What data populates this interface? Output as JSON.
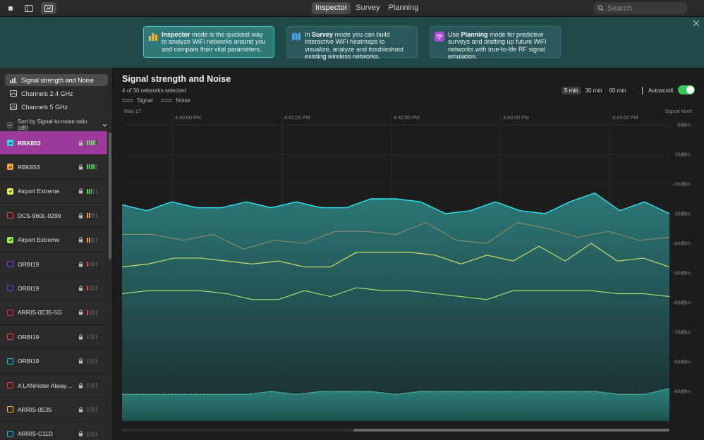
{
  "toolbar": {
    "modes": [
      "Inspector",
      "Survey",
      "Planning"
    ],
    "active_mode": "Inspector",
    "search_placeholder": "Search"
  },
  "banner": {
    "cards": [
      {
        "bold": "Inspector",
        "text": " mode is the quickest way to analyze WiFi networks around you and compare their vital parameters.",
        "prefix": "",
        "icon": "bar-chart-icon"
      },
      {
        "bold": "Survey",
        "text": " mode you can build interactive WiFi heatmaps to visualize, analyze and troubleshoot existing wireless networks.",
        "prefix": "In ",
        "icon": "map-icon"
      },
      {
        "bold": "Planning",
        "text": " mode for predictive surveys and drafting up future WiFi networks with true-to-life RF signal emulation.",
        "prefix": "Use ",
        "icon": "wifi-icon"
      }
    ]
  },
  "sidebar": {
    "nav": [
      {
        "label": "Signal strength and Noise",
        "icon": "signal-icon"
      },
      {
        "label": "Channels 2.4 GHz",
        "icon": "channels-icon"
      },
      {
        "label": "Channels 5 GHz",
        "icon": "channels-icon"
      }
    ],
    "sort_label": "Sort by Signal-to-noise ratio (dB)",
    "networks": [
      {
        "name": "RBK853",
        "color": "#3fd3e0",
        "checked": true,
        "selected": true,
        "bars": [
          "#6fdc6f",
          "#6fdc6f",
          "#6fdc6f",
          "#6fdc6f",
          "#6fdc6f",
          "#4a4a4a"
        ]
      },
      {
        "name": "RBK853",
        "color": "#f0a43a",
        "checked": true,
        "selected": false,
        "bars": [
          "#4fd34f",
          "#4fd34f",
          "#4fd34f",
          "#4fd34f",
          "#4fd34f",
          "#4a4a4a"
        ]
      },
      {
        "name": "Airport Extreme",
        "color": "#e6ef5a",
        "checked": true,
        "selected": false,
        "bars": [
          "#4fd34f",
          "#4fd34f",
          "#4fd34f",
          "#4a4a4a",
          "#4a4a4a",
          "#4a4a4a"
        ]
      },
      {
        "name": "DCS-960L-0299",
        "color": "#d94b55",
        "checked": false,
        "selected": false,
        "bars": [
          "#f09a3a",
          "#f09a3a",
          "#4a4a4a",
          "#4a4a4a",
          "#4a4a4a",
          "#4a4a4a"
        ]
      },
      {
        "name": "Airport Extreme",
        "color": "#9be85b",
        "checked": true,
        "selected": false,
        "bars": [
          "#f09a3a",
          "#f09a3a",
          "#4a4a4a",
          "#4a4a4a",
          "#4a4a4a",
          "#4a4a4a"
        ]
      },
      {
        "name": "ORBI19",
        "color": "#7c4dc9",
        "checked": false,
        "selected": false,
        "bars": [
          "#e0443c",
          "#4a4a4a",
          "#4a4a4a",
          "#4a4a4a",
          "#4a4a4a",
          "#4a4a4a"
        ]
      },
      {
        "name": "ORBI19",
        "color": "#6a3fc0",
        "checked": false,
        "selected": false,
        "bars": [
          "#e0443c",
          "#4a4a4a",
          "#4a4a4a",
          "#4a4a4a",
          "#4a4a4a",
          "#4a4a4a"
        ]
      },
      {
        "name": "ARRIS-0E35-5G",
        "color": "#c8375f",
        "checked": false,
        "selected": false,
        "bars": [
          "#e0443c",
          "#4a4a4a",
          "#4a4a4a",
          "#4a4a4a",
          "#4a4a4a",
          "#4a4a4a"
        ]
      },
      {
        "name": "ORBI19",
        "color": "#d94b55",
        "checked": false,
        "selected": false,
        "bars": [
          "#4a4a4a",
          "#4a4a4a",
          "#4a4a4a",
          "#4a4a4a",
          "#4a4a4a",
          "#4a4a4a"
        ]
      },
      {
        "name": "ORBI19",
        "color": "#3ab8d0",
        "checked": false,
        "selected": false,
        "bars": [
          "#4a4a4a",
          "#4a4a4a",
          "#4a4a4a",
          "#4a4a4a",
          "#4a4a4a",
          "#4a4a4a"
        ]
      },
      {
        "name": "A LANnister Always...",
        "color": "#d94b55",
        "checked": false,
        "selected": false,
        "bars": [
          "#4a4a4a",
          "#4a4a4a",
          "#4a4a4a",
          "#4a4a4a",
          "#4a4a4a",
          "#4a4a4a"
        ]
      },
      {
        "name": "ARRIS-0E35",
        "color": "#f0b43a",
        "checked": false,
        "selected": false,
        "bars": [
          "#4a4a4a",
          "#4a4a4a",
          "#4a4a4a",
          "#4a4a4a",
          "#4a4a4a",
          "#4a4a4a"
        ]
      },
      {
        "name": "ARRIS-C11D",
        "color": "#3ab8d0",
        "checked": false,
        "selected": false,
        "bars": [
          "#4a4a4a",
          "#4a4a4a",
          "#4a4a4a",
          "#4a4a4a",
          "#4a4a4a",
          "#4a4a4a"
        ]
      }
    ]
  },
  "main": {
    "title": "Signal strength and Noise",
    "subtitle": "4 of 30 networks selected",
    "legend": [
      "Signal",
      "Noise"
    ],
    "time_ranges": [
      "5 min",
      "30 min",
      "60 min"
    ],
    "active_range": "5 min",
    "autoscroll_label": "Autoscroll",
    "autoscroll_on": true,
    "date_label": "May 27",
    "signal_level_label": "Signal level"
  },
  "chart_data": {
    "type": "line",
    "x_ticks": [
      "4:40:00 PM",
      "4:41:00 PM",
      "4:42:00 PM",
      "4:43:00 PM",
      "4:44:00 PM"
    ],
    "y_ticks": [
      "0dBm",
      "-10dBm",
      "-20dBm",
      "-30dBm",
      "-40dBm",
      "-50dBm",
      "-60dBm",
      "-70dBm",
      "-80dBm",
      "-90dBm"
    ],
    "ylim": [
      -100,
      0
    ],
    "series": [
      {
        "color": "#2ee6f2",
        "values": [
          -27,
          -29,
          -26,
          -28,
          -28,
          -26,
          -28,
          -26,
          -28,
          -28,
          -25,
          -25,
          -26,
          -30,
          -29,
          -26,
          -29,
          -30,
          -26,
          -23,
          -29,
          -26,
          -30
        ],
        "fill": true
      },
      {
        "color": "#8f8a6e",
        "values": [
          -37,
          -37,
          -39,
          -37,
          -42,
          -39,
          -40,
          -36,
          -36,
          -37,
          -33,
          -39,
          -40,
          -33,
          -35,
          -38,
          -36,
          -39,
          -38
        ],
        "fill": false
      },
      {
        "color": "#d7ea6a",
        "values": [
          -48,
          -47,
          -45,
          -45,
          -46,
          -47,
          -46,
          -48,
          -48,
          -43,
          -43,
          -43,
          -44,
          -47,
          -44,
          -46,
          -41,
          -46,
          -40,
          -46,
          -45,
          -48
        ],
        "fill": false
      },
      {
        "color": "#a8e57c",
        "values": [
          -57,
          -56,
          -56,
          -56,
          -57,
          -59,
          -59,
          -56,
          -58,
          -55,
          -56,
          -56,
          -57,
          -58,
          -59,
          -56,
          -56,
          -56,
          -56,
          -57,
          -57,
          -58
        ],
        "fill": false
      },
      {
        "color": "#5fe0c8",
        "values": [
          -91,
          -91,
          -91,
          -91,
          -91,
          -91,
          -90,
          -91,
          -90,
          -90,
          -90,
          -91,
          -90,
          -90,
          -90,
          -90,
          -90,
          -90,
          -90,
          -90,
          -91,
          -91,
          -89
        ],
        "fill": true
      }
    ]
  }
}
